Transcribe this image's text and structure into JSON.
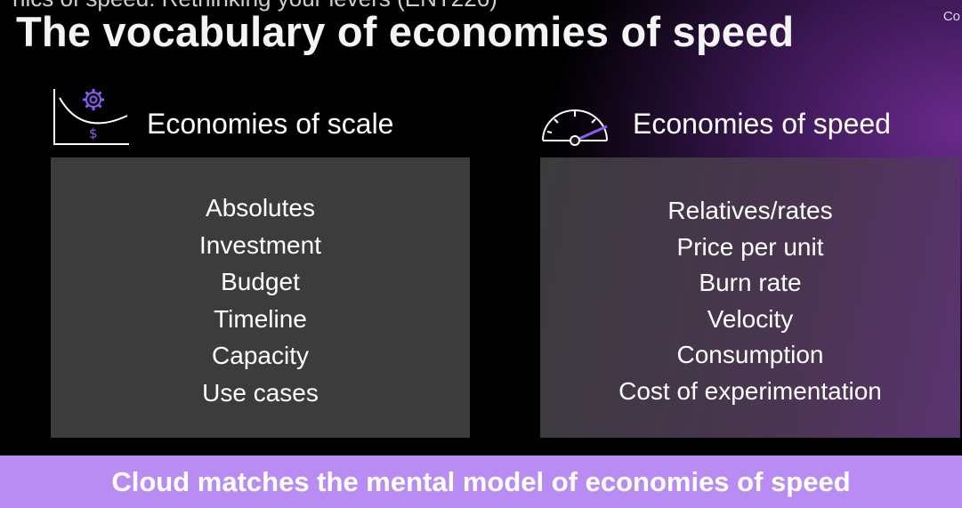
{
  "header": {
    "partial_title": "nics of speed: Rethinking your levers (ENT226)",
    "corner_text": "Co"
  },
  "slide": {
    "title": "The vocabulary of economies of speed",
    "left": {
      "heading": "Economies of scale",
      "icon": "cost-curve-gear-icon",
      "items": [
        "Absolutes",
        "Investment",
        "Budget",
        "Timeline",
        "Capacity",
        "Use cases"
      ]
    },
    "right": {
      "heading": "Economies of speed",
      "icon": "speedometer-icon",
      "items": [
        "Relatives/rates",
        "Price per unit",
        "Burn rate",
        "Velocity",
        "Consumption",
        "Cost of experimentation"
      ]
    },
    "banner": "Cloud matches the mental model of economies of speed"
  },
  "colors": {
    "accent": "#b88cf2",
    "panel": "#3c3c3c",
    "icon_accent": "#8a5cf0"
  }
}
